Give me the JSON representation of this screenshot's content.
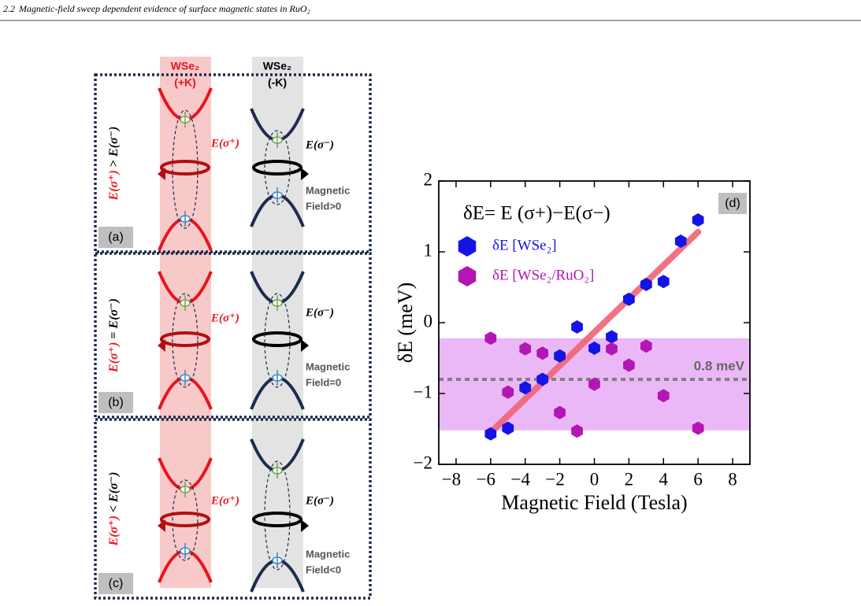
{
  "header": {
    "section": "2.2",
    "title": "Magnetic-field sweep dependent evidence of surface magnetic states in RuO₂"
  },
  "diagram": {
    "columns": [
      {
        "material": "WSe₂",
        "valley": "(+K)"
      },
      {
        "material": "WSe₂",
        "valley": "(-K)"
      }
    ],
    "transitions": [
      "E(σ⁺)",
      "E(σ⁻)"
    ],
    "panels": [
      {
        "label": "(a)",
        "condition": {
          "left": "E(σ⁺)",
          "relation": " > ",
          "right": "E(σ⁻)"
        },
        "field": [
          "Magnetic",
          "Field>0"
        ]
      },
      {
        "label": "(b)",
        "condition": {
          "left": "E(σ⁺)",
          "relation": " = ",
          "right": "E(σ⁻)"
        },
        "field": [
          "Magnetic",
          "Field=0"
        ]
      },
      {
        "label": "(c)",
        "condition": {
          "left": "E(σ⁺)",
          "relation": " < ",
          "right": "E(σ⁻)"
        },
        "field": [
          "Magnetic",
          "Field<0"
        ]
      }
    ]
  },
  "chart_data": {
    "type": "scatter",
    "panel_label": "(d)",
    "equation": "δE= E (σ+)−E(σ−)",
    "xlabel": "Magnetic Field (Tesla)",
    "ylabel": "δE (meV)",
    "xlim": [
      -9,
      9
    ],
    "ylim": [
      -2,
      2
    ],
    "xticks": [
      {
        "value": -8,
        "label": "−8"
      },
      {
        "value": -6,
        "label": "−6"
      },
      {
        "value": -4,
        "label": "−4"
      },
      {
        "value": -2,
        "label": "−2"
      },
      0,
      2,
      4,
      6,
      8
    ],
    "yticks": [
      {
        "value": -2,
        "label": "−2"
      },
      {
        "value": -1,
        "label": "−1"
      },
      0,
      1,
      2
    ],
    "series": [
      {
        "name": "δE [WSe₂]",
        "color": "#1414e6",
        "x": [
          -6,
          -5,
          -4,
          -3,
          -2,
          -1,
          0,
          1,
          2,
          3,
          4,
          5,
          6
        ],
        "values": [
          -1.57,
          -1.49,
          -0.92,
          -0.8,
          -0.47,
          -0.06,
          -0.36,
          -0.2,
          0.33,
          0.54,
          0.58,
          1.15,
          1.45
        ]
      },
      {
        "name": "δE [WSe₂/RuO₂]",
        "color": "#b316b3",
        "x": [
          -6,
          -5,
          -4,
          -3,
          -2,
          -1,
          0,
          1,
          2,
          3,
          4,
          6
        ],
        "values": [
          -0.22,
          -0.98,
          -0.37,
          -0.43,
          -1.27,
          -1.53,
          -0.87,
          -0.37,
          -0.6,
          -0.33,
          -1.03,
          -1.49
        ]
      }
    ],
    "fit": {
      "color": "#f06474",
      "x": [
        -6,
        6
      ],
      "values": [
        -1.55,
        1.28
      ]
    },
    "band": {
      "color": "#ebb8f7",
      "values": [
        -1.52,
        -0.22
      ]
    },
    "reference": {
      "value": -0.8,
      "label": "0.8 meV",
      "color": "#808080"
    }
  }
}
